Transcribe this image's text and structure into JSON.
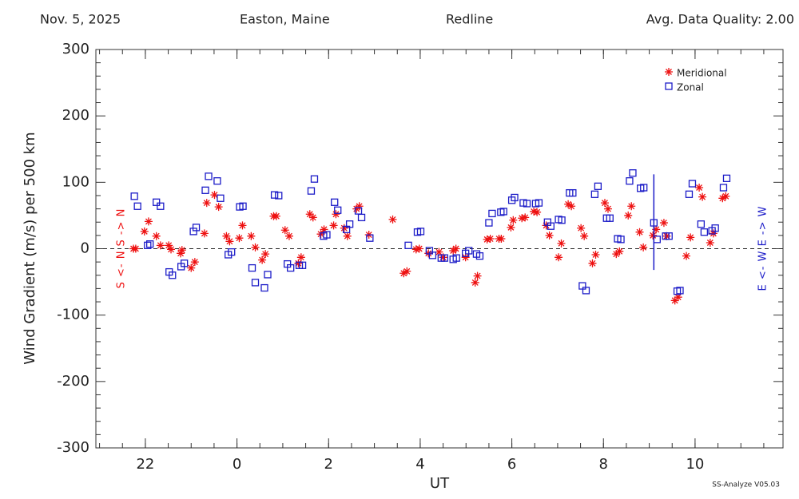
{
  "chart_data": {
    "type": "scatter",
    "header": {
      "date": "Nov. 5, 2025",
      "location": "Easton, Maine",
      "emission": "Redline",
      "quality": "Avg. Data Quality: 2.00"
    },
    "footer": "SS-Analyze V05.03",
    "xlabel": "UT",
    "ylabel": "Wind Gradient (m/s) per 500 km",
    "left_annotation": "S <- N S -> N",
    "right_annotation": "E <- W E -> W",
    "xlim": [
      20.92,
      35.92
    ],
    "ylim": [
      -300,
      300
    ],
    "xticks": [
      22,
      {
        "value": 24,
        "label": "0"
      },
      {
        "value": 26,
        "label": "2"
      },
      {
        "value": 28,
        "label": "4"
      },
      {
        "value": 30,
        "label": "6"
      },
      {
        "value": 32,
        "label": "8"
      },
      {
        "value": 34,
        "label": "10"
      }
    ],
    "yticks": [
      -300,
      -200,
      -100,
      0,
      100,
      200,
      300
    ],
    "series": [
      {
        "name": "Meridional",
        "color": "#ee1111",
        "marker": "asterisk",
        "x": [
          21.74,
          21.79,
          21.98,
          22.07,
          22.24,
          22.33,
          22.51,
          22.56,
          22.77,
          22.8,
          23.0,
          23.08,
          23.29,
          23.34,
          23.51,
          23.6,
          23.77,
          23.84,
          24.05,
          24.12,
          24.31,
          24.4,
          24.55,
          24.62,
          24.8,
          24.86,
          25.05,
          25.14,
          25.34,
          25.4,
          25.59,
          25.66,
          25.83,
          25.9,
          26.11,
          26.16,
          26.34,
          26.41,
          26.61,
          26.67,
          26.88,
          27.4,
          27.64,
          27.71,
          27.91,
          27.98,
          28.18,
          28.41,
          28.5,
          28.72,
          28.78,
          28.99,
          29.2,
          29.25,
          29.46,
          29.53,
          29.72,
          29.77,
          29.98,
          30.03,
          30.22,
          30.29,
          30.48,
          30.55,
          30.75,
          30.82,
          31.02,
          31.08,
          31.23,
          31.3,
          31.51,
          31.58,
          31.76,
          31.83,
          32.03,
          32.1,
          32.28,
          32.35,
          32.54,
          32.61,
          32.79,
          32.87,
          33.08,
          33.15,
          33.32,
          33.38,
          33.56,
          33.63,
          33.81,
          33.9,
          34.09,
          34.16,
          34.33,
          34.4,
          34.6,
          34.67
        ],
        "values": [
          0,
          0,
          26,
          41,
          19,
          5,
          5,
          -1,
          -7,
          -2,
          -29,
          -20,
          23,
          69,
          81,
          63,
          19,
          11,
          16,
          35,
          19,
          2,
          -17,
          -8,
          49,
          49,
          28,
          19,
          -22,
          -13,
          52,
          47,
          22,
          29,
          35,
          52,
          31,
          19,
          60,
          64,
          21,
          44,
          -37,
          -34,
          -1,
          0,
          -7,
          -5,
          -13,
          -3,
          0,
          -13,
          -51,
          -41,
          14,
          15,
          15,
          15,
          32,
          43,
          46,
          47,
          56,
          55,
          35,
          20,
          -13,
          8,
          67,
          64,
          31,
          19,
          -22,
          -9,
          69,
          60,
          -8,
          -4,
          50,
          64,
          25,
          2,
          20,
          29,
          39,
          19,
          -78,
          -73,
          -11,
          17,
          92,
          78,
          9,
          23,
          76,
          79
        ]
      },
      {
        "name": "Zonal",
        "color": "#1c1cc8",
        "marker": "square",
        "x": [
          21.76,
          21.83,
          22.05,
          22.1,
          22.24,
          22.33,
          22.52,
          22.59,
          22.78,
          22.85,
          23.05,
          23.11,
          23.31,
          23.38,
          23.57,
          23.64,
          23.81,
          23.88,
          24.06,
          24.13,
          24.33,
          24.4,
          24.6,
          24.67,
          24.82,
          24.91,
          25.1,
          25.17,
          25.36,
          25.43,
          25.62,
          25.69,
          25.89,
          25.96,
          26.13,
          26.2,
          26.39,
          26.46,
          26.65,
          26.72,
          26.9,
          27.74,
          27.94,
          28.01,
          28.2,
          28.27,
          28.46,
          28.53,
          28.72,
          28.79,
          28.99,
          29.06,
          29.23,
          29.3,
          29.5,
          29.57,
          29.76,
          29.82,
          30.0,
          30.06,
          30.25,
          30.33,
          30.52,
          30.59,
          30.78,
          30.85,
          31.02,
          31.09,
          31.26,
          31.33,
          31.54,
          31.62,
          31.81,
          31.88,
          32.07,
          32.14,
          32.31,
          32.38,
          32.57,
          32.64,
          32.81,
          32.88,
          33.1,
          33.17,
          33.36,
          33.43,
          33.61,
          33.67,
          33.87,
          33.94,
          34.13,
          34.2,
          34.37,
          34.44,
          34.62,
          34.69
        ],
        "values": [
          79,
          64,
          5,
          7,
          70,
          64,
          -35,
          -40,
          -27,
          -22,
          26,
          32,
          88,
          109,
          102,
          76,
          -9,
          -5,
          63,
          64,
          -29,
          -51,
          -59,
          -39,
          81,
          80,
          -23,
          -29,
          -25,
          -25,
          87,
          105,
          19,
          21,
          70,
          58,
          29,
          37,
          57,
          47,
          16,
          5,
          25,
          26,
          -3,
          -10,
          -14,
          -14,
          -16,
          -14,
          -7,
          -3,
          -8,
          -11,
          39,
          53,
          55,
          56,
          73,
          77,
          69,
          68,
          68,
          69,
          40,
          34,
          44,
          43,
          84,
          84,
          -56,
          -63,
          82,
          94,
          46,
          46,
          15,
          14,
          102,
          114,
          91,
          92,
          39,
          14,
          19,
          19,
          -64,
          -63,
          82,
          98,
          37,
          25,
          27,
          31,
          92,
          106
        ]
      }
    ],
    "error_bar": {
      "x": 33.1,
      "y": 40,
      "error": 72
    },
    "legend": "upper right",
    "zero_line": true
  }
}
